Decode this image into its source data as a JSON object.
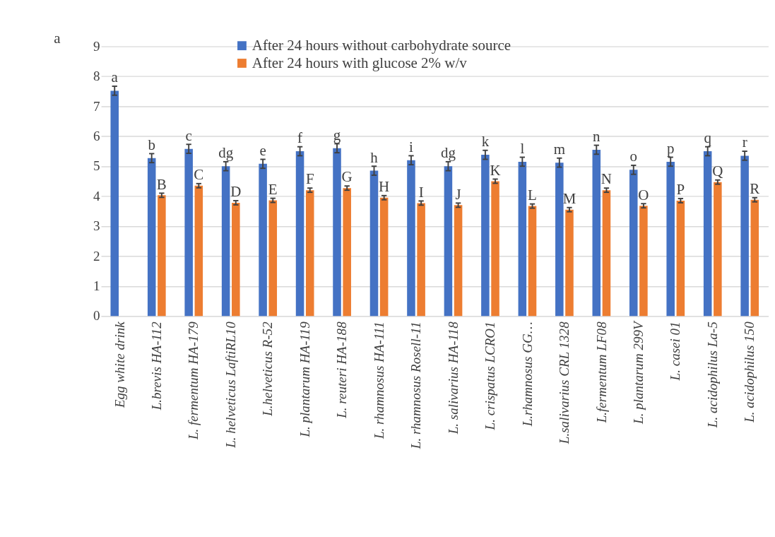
{
  "chart_data": {
    "type": "bar",
    "categories": [
      "Egg white drink",
      "L.brevis HA-112",
      "L. fermentum HA-179",
      "L. helveticus LaftiRL10",
      "L.helveticus R-52",
      "L. plantarum HA-119",
      "L. reuteri HA-188",
      "L. rhamnosus HA-111",
      "L. rhamnosus Rosell-11",
      "L. salivarius HA-118",
      "L. crispatus LCRO1",
      "L.rhamnosus GG…",
      "L.salivarius CRL 1328",
      "L.fermentum LF08",
      "L. plantarum 299V",
      "L. casei 01",
      "L. acidophilus La-5",
      "L. acidophilus 150"
    ],
    "series": [
      {
        "name": "After 24 hours without carbohydrate source",
        "color": "#4472c4",
        "values": [
          7.52,
          5.27,
          5.58,
          5.0,
          5.08,
          5.5,
          5.6,
          4.85,
          5.2,
          5.0,
          5.38,
          5.15,
          5.12,
          5.55,
          4.88,
          5.15,
          5.5,
          5.35
        ],
        "errors": [
          0.15,
          0.15,
          0.15,
          0.15,
          0.15,
          0.15,
          0.15,
          0.15,
          0.15,
          0.15,
          0.15,
          0.15,
          0.15,
          0.15,
          0.15,
          0.15,
          0.15,
          0.15
        ]
      },
      {
        "name": "After 24 hours with glucose 2%  w/v",
        "color": "#ed7d31",
        "values": [
          null,
          4.03,
          4.35,
          3.78,
          3.86,
          4.2,
          4.27,
          3.95,
          3.77,
          3.7,
          4.5,
          3.67,
          3.55,
          4.2,
          3.68,
          3.85,
          4.47,
          3.88
        ],
        "errors": [
          null,
          0.07,
          0.07,
          0.07,
          0.07,
          0.07,
          0.07,
          0.07,
          0.07,
          0.07,
          0.07,
          0.07,
          0.07,
          0.07,
          0.07,
          0.07,
          0.07,
          0.07
        ]
      }
    ],
    "ylim": [
      0,
      9
    ],
    "yticks": [
      0,
      1,
      2,
      3,
      4,
      5,
      6,
      7,
      8,
      9
    ],
    "grid": "y",
    "legend": "top",
    "annotations": [
      "a",
      {
        "text": "a",
        "x": "Egg white drink",
        "y": 7.52
      },
      {
        "text": "b",
        "x": "L.brevis HA-112",
        "y": 5.27
      },
      {
        "text": "c",
        "x": "L. fermentum HA-179",
        "y": 5.58
      },
      {
        "text": "dg",
        "x": "L. helveticus LaftiRL10",
        "y": 5.0
      },
      {
        "text": "e",
        "x": "L.helveticus R-52",
        "y": 5.08
      },
      {
        "text": "f",
        "x": "L. plantarum HA-119",
        "y": 5.5
      },
      {
        "text": "g",
        "x": "L. reuteri HA-188",
        "y": 5.6
      },
      {
        "text": "h",
        "x": "L. rhamnosus HA-111",
        "y": 4.85
      },
      {
        "text": "i",
        "x": "L. rhamnosus Rosell-11",
        "y": 5.2
      },
      {
        "text": "dg",
        "x": "L. salivarius HA-118",
        "y": 5.0
      },
      {
        "text": "k",
        "x": "L. crispatus LCRO1",
        "y": 5.38
      },
      {
        "text": "l",
        "x": "L.rhamnosus GG…",
        "y": 5.15
      },
      {
        "text": "m",
        "x": "L.salivarius CRL 1328",
        "y": 5.12
      },
      {
        "text": "n",
        "x": "L.fermentum LF08",
        "y": 5.55
      },
      {
        "text": "o",
        "x": "L. plantarum 299V",
        "y": 4.88
      },
      {
        "text": "p",
        "x": "L. casei 01",
        "y": 5.15
      },
      {
        "text": "q",
        "x": "L. acidophilus La-5",
        "y": 5.5
      },
      {
        "text": "r",
        "x": "L. acidophilus 150",
        "y": 5.35
      },
      {
        "text": "B",
        "x": "L.brevis HA-112",
        "y": 4.03
      },
      {
        "text": "C",
        "x": "L. fermentum HA-179",
        "y": 4.35
      },
      {
        "text": "D",
        "x": "L. helveticus LaftiRL10",
        "y": 3.78
      },
      {
        "text": "E",
        "x": "L.helveticus R-52",
        "y": 3.86
      },
      {
        "text": "F",
        "x": "L. plantarum HA-119",
        "y": 4.2
      },
      {
        "text": "G",
        "x": "L. reuteri HA-188",
        "y": 4.27
      },
      {
        "text": "H",
        "x": "L. rhamnosus HA-111",
        "y": 3.95
      },
      {
        "text": "I",
        "x": "L. rhamnosus Rosell-11",
        "y": 3.77
      },
      {
        "text": "J",
        "x": "L. salivarius HA-118",
        "y": 3.7
      },
      {
        "text": "K",
        "x": "L. crispatus LCRO1",
        "y": 4.5
      },
      {
        "text": "L",
        "x": "L.rhamnosus GG…",
        "y": 3.67
      },
      {
        "text": "M",
        "x": "L.salivarius CRL 1328",
        "y": 3.55
      },
      {
        "text": "N",
        "x": "L.fermentum LF08",
        "y": 4.2
      },
      {
        "text": "O",
        "x": "L. plantarum 299V",
        "y": 3.68
      },
      {
        "text": "P",
        "x": "L. casei 01",
        "y": 3.85
      },
      {
        "text": "Q",
        "x": "L. acidophilus La-5",
        "y": 4.47
      },
      {
        "text": "R",
        "x": "L. acidophilus 150",
        "y": 3.88
      }
    ]
  }
}
